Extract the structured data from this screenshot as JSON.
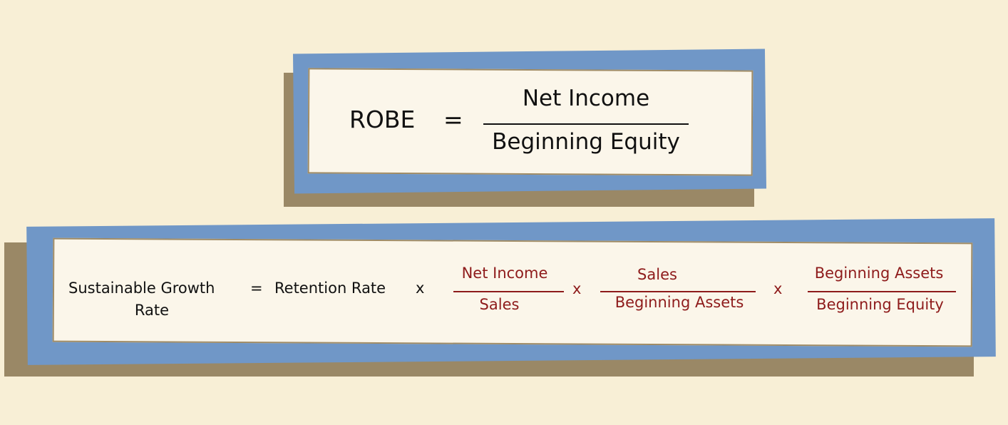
{
  "robe": {
    "lhs": "ROBE",
    "equals": "=",
    "numerator": "Net Income",
    "denominator": "Beginning Equity"
  },
  "sgr": {
    "lhs_line1": "Sustainable Growth",
    "lhs_line2": "Rate",
    "equals": "=",
    "retention": "Retention Rate",
    "times": "x",
    "frac1": {
      "numerator": "Net Income",
      "denominator": "Sales"
    },
    "frac2": {
      "numerator": "Sales",
      "denominator": "Beginning Assets"
    },
    "frac3": {
      "numerator": "Beginning Assets",
      "denominator": "Beginning Equity"
    }
  },
  "colors": {
    "background": "#f8efd6",
    "frame_blue": "#7097c7",
    "shadow": "#9a8866",
    "panel": "#fbf6ea",
    "accent_red": "#8e1b1b"
  }
}
